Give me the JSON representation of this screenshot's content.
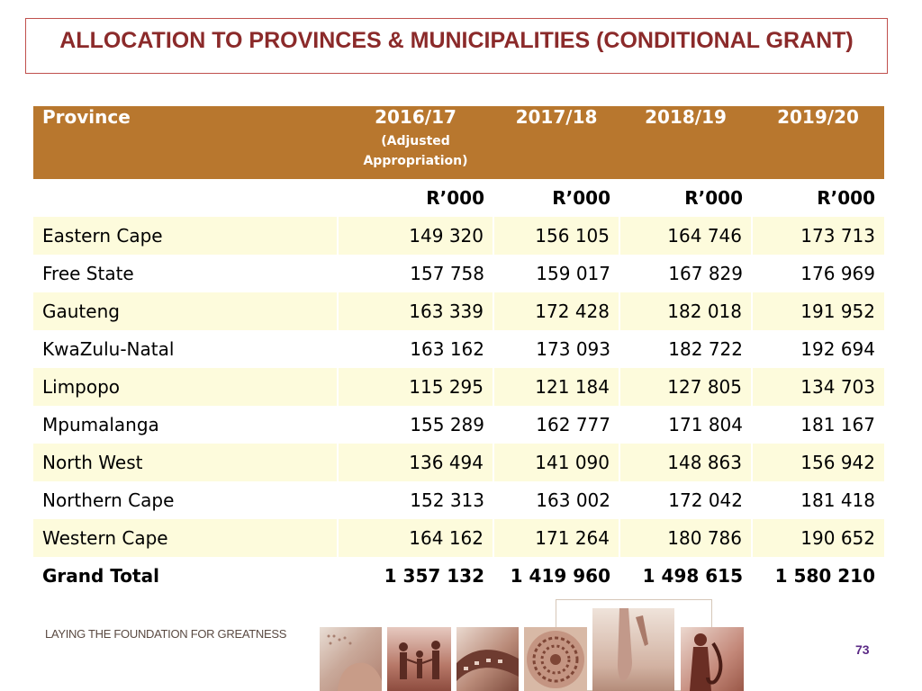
{
  "title": "ALLOCATION TO PROVINCES & MUNICIPALITIES (CONDITIONAL GRANT)",
  "table": {
    "headers": {
      "province": "Province",
      "y1": "2016/17",
      "y1_sub": "(Adjusted Appropriation)",
      "y2": "2017/18",
      "y3": "2018/19",
      "y4": "2019/20"
    },
    "unit": "R’000",
    "rows": [
      {
        "name": "Eastern Cape",
        "values": [
          "149 320",
          "156 105",
          "164 746",
          "173 713"
        ]
      },
      {
        "name": "Free State",
        "values": [
          "157 758",
          "159 017",
          "167 829",
          "176 969"
        ]
      },
      {
        "name": "Gauteng",
        "values": [
          "163 339",
          "172 428",
          "182 018",
          "191 952"
        ]
      },
      {
        "name": "KwaZulu-Natal",
        "values": [
          "163 162",
          "173 093",
          "182 722",
          "192 694"
        ]
      },
      {
        "name": "Limpopo",
        "values": [
          "115 295",
          "121 184",
          "127 805",
          "134 703"
        ]
      },
      {
        "name": "Mpumalanga",
        "values": [
          "155 289",
          "162 777",
          "171 804",
          "181 167"
        ]
      },
      {
        "name": "North West",
        "values": [
          "136 494",
          "141 090",
          "148 863",
          "156 942"
        ]
      },
      {
        "name": "Northern Cape",
        "values": [
          "152 313",
          "163 002",
          "172 042",
          "181 418"
        ]
      },
      {
        "name": "Western Cape",
        "values": [
          "164 162",
          "171 264",
          "180 786",
          "190 652"
        ]
      }
    ],
    "total": {
      "name": "Grand Total",
      "values": [
        "1 357 132",
        "1 419 960",
        "1 498 615",
        "1 580 210"
      ]
    }
  },
  "footer": {
    "tagline": "LAYING THE FOUNDATION FOR GREATNESS",
    "page_number": "73"
  },
  "images": [
    "braille-hands-photo",
    "family-silhouette-photo",
    "film-reel-photo",
    "woven-basket-photo",
    "ballet-shoes-photo",
    "saxophone-player-photo"
  ]
}
